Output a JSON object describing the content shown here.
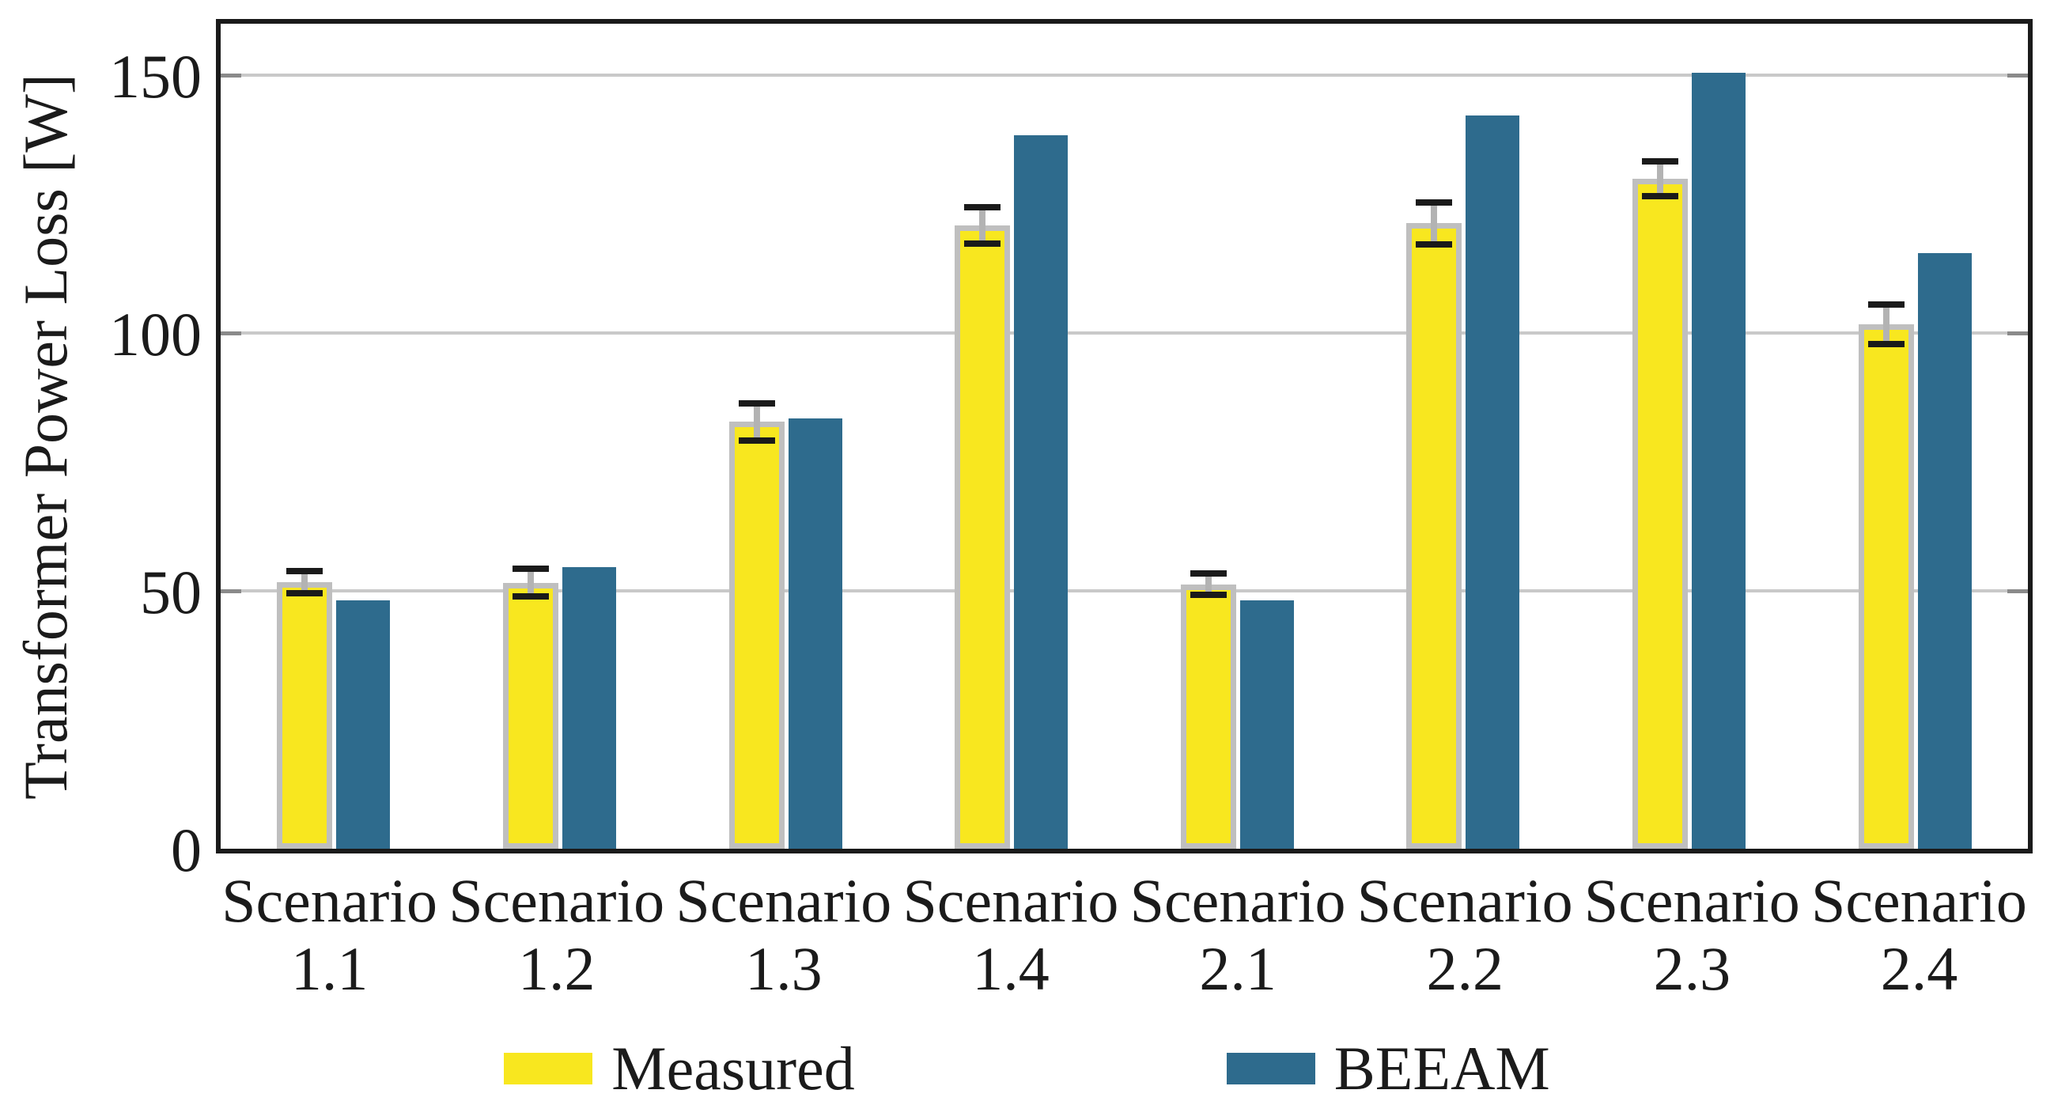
{
  "chart_data": {
    "type": "bar",
    "title": "",
    "xlabel": "",
    "ylabel": "Transformer Power Loss [W]",
    "categories": [
      "Scenario 1.1",
      "Scenario 1.2",
      "Scenario 1.3",
      "Scenario 1.4",
      "Scenario 2.1",
      "Scenario 2.2",
      "Scenario 2.3",
      "Scenario 2.4"
    ],
    "series": [
      {
        "name": "Measured",
        "color": "#F8E71F",
        "edge_color": "#BFBFBF",
        "values": [
          51.7,
          51.6,
          82.8,
          120.9,
          51.3,
          121.3,
          129.9,
          101.7
        ],
        "errors": [
          2.7,
          3.3,
          4.2,
          4.2,
          2.7,
          4.7,
          4.0,
          4.5
        ]
      },
      {
        "name": "BEEAM",
        "color": "#2E6B8D",
        "values": [
          48.2,
          54.6,
          83.5,
          138.3,
          48.2,
          142.2,
          150.5,
          115.5
        ]
      }
    ],
    "yticks": [
      0,
      50,
      100,
      150
    ],
    "ylim": [
      0,
      160
    ],
    "grid": "horizontal-y",
    "legend_position": "bottom-center",
    "error_bar_style": {
      "line_color": "#B3B3B3",
      "cap_color": "#1A1A1A"
    }
  },
  "styles": {
    "background": "#FFFFFF",
    "grid_color": "#C9C9C9",
    "spine_color": "#1A1A1A",
    "inner_tick_color": "#8A8A8A",
    "text_color": "#1B1B1B"
  }
}
